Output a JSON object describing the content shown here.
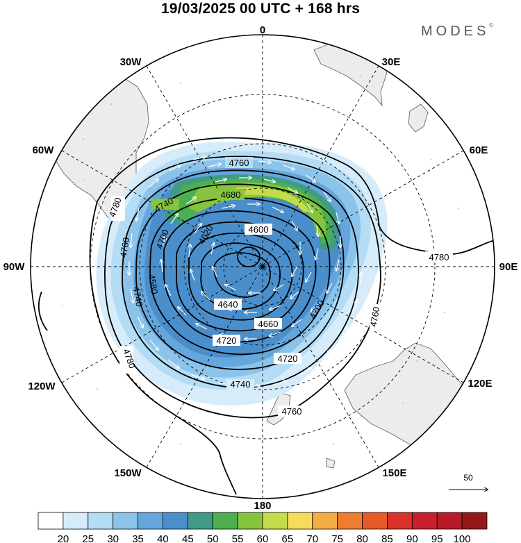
{
  "header": {
    "title": "19/03/2025  00 UTC  + 168 hrs",
    "brand": "MODES",
    "brand_mark": "©"
  },
  "map": {
    "projection": "south polar stereographic",
    "longitude_labels": [
      {
        "lon": 0,
        "text": "0"
      },
      {
        "lon": 30,
        "text": "30E"
      },
      {
        "lon": 60,
        "text": "60E"
      },
      {
        "lon": 90,
        "text": "90E"
      },
      {
        "lon": 120,
        "text": "120E"
      },
      {
        "lon": 150,
        "text": "150E"
      },
      {
        "lon": 180,
        "text": "180"
      },
      {
        "lon": -150,
        "text": "150W"
      },
      {
        "lon": -120,
        "text": "120W"
      },
      {
        "lon": -90,
        "text": "90W"
      },
      {
        "lon": -60,
        "text": "60W"
      },
      {
        "lon": -30,
        "text": "30W"
      }
    ],
    "contour_labels": [
      "4780",
      "4760",
      "4740",
      "4720",
      "4700",
      "4680",
      "4660",
      "4640",
      "4620",
      "4600",
      "4580"
    ],
    "vector_reference": "50",
    "colors": {
      "land": "#ececec",
      "coast": "#666666",
      "grid": "#000000",
      "contour": "#000000",
      "vector": "#ffffff"
    }
  },
  "colorbar": {
    "ticks": [
      "20",
      "25",
      "30",
      "35",
      "40",
      "45",
      "50",
      "55",
      "60",
      "65",
      "70",
      "75",
      "80",
      "85",
      "90",
      "95",
      "100"
    ],
    "colors": [
      "#ffffff",
      "#d6ecfa",
      "#b4dcf5",
      "#8cc3ea",
      "#65a6dc",
      "#4a8fcb",
      "#3f9a86",
      "#4caf50",
      "#86c440",
      "#c5dc4a",
      "#f5dc5a",
      "#f4ac45",
      "#ef7d30",
      "#e65a2a",
      "#d8322a",
      "#c8202e",
      "#b81a28",
      "#951818"
    ]
  }
}
